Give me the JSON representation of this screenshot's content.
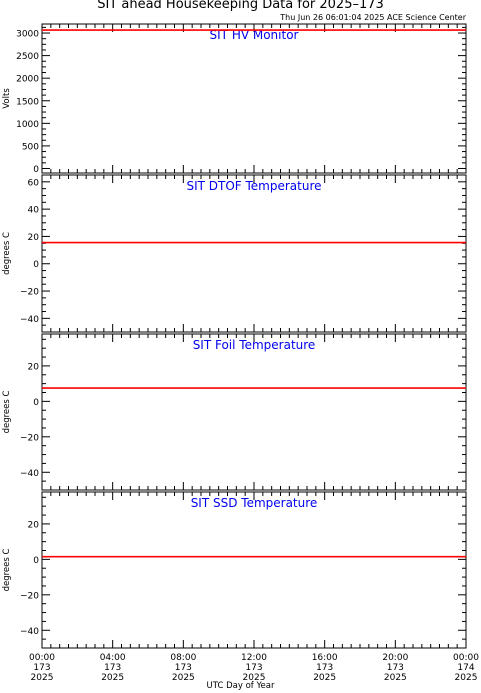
{
  "title": "SIT ahead Housekeeping Data for 2025–173",
  "stamp": "Thu Jun 26 06:01:04 2025 ACE Science Center",
  "x_axis_title": "UTC Day of Year",
  "colors": {
    "trace": "#ff0000",
    "panel_title": "#0000ee",
    "axes": "#000000"
  },
  "chart_data": [
    {
      "type": "line",
      "title": "SIT HV Monitor",
      "ylabel": "Volts",
      "ylim": [
        -100,
        3200
      ],
      "yticks": [
        0,
        500,
        1000,
        1500,
        2000,
        2500,
        3000
      ],
      "ytick_labels": [
        "0",
        "500",
        "1000",
        "1500",
        "2000",
        "2500",
        "3000"
      ],
      "x_hours": [
        0,
        24
      ],
      "series": [
        {
          "x": [
            0,
            24
          ],
          "values": [
            3065,
            3065
          ]
        }
      ]
    },
    {
      "type": "line",
      "title": "SIT DTOF Temperature",
      "ylabel": "degrees C",
      "ylim": [
        -50,
        65
      ],
      "yticks": [
        -40,
        -20,
        0,
        20,
        40,
        60
      ],
      "ytick_labels": [
        "−40",
        "−20",
        "0",
        "20",
        "40",
        "60"
      ],
      "x_hours": [
        0,
        24
      ],
      "series": [
        {
          "x": [
            0,
            24
          ],
          "values": [
            15.5,
            15.5
          ]
        }
      ]
    },
    {
      "type": "line",
      "title": "SIT Foil Temperature",
      "ylabel": "degrees C",
      "ylim": [
        -50,
        38
      ],
      "yticks": [
        -40,
        -20,
        0,
        20
      ],
      "ytick_labels": [
        "−40",
        "−20",
        "0",
        "20"
      ],
      "x_hours": [
        0,
        24
      ],
      "series": [
        {
          "x": [
            0,
            24
          ],
          "values": [
            7.5,
            7.5
          ]
        }
      ]
    },
    {
      "type": "line",
      "title": "SIT SSD Temperature",
      "ylabel": "degrees C",
      "ylim": [
        -50,
        38
      ],
      "yticks": [
        -40,
        -20,
        0,
        20
      ],
      "ytick_labels": [
        "−40",
        "−20",
        "0",
        "20"
      ],
      "x_hours": [
        0,
        24
      ],
      "series": [
        {
          "x": [
            0,
            24
          ],
          "values": [
            1.5,
            1.5
          ]
        }
      ]
    }
  ],
  "x_axis": {
    "range_hours": [
      0,
      24
    ],
    "ticks": [
      {
        "hour": 0,
        "time": "00:00",
        "doy": "173",
        "year": "2025"
      },
      {
        "hour": 4,
        "time": "04:00",
        "doy": "173",
        "year": "2025"
      },
      {
        "hour": 8,
        "time": "08:00",
        "doy": "173",
        "year": "2025"
      },
      {
        "hour": 12,
        "time": "12:00",
        "doy": "173",
        "year": "2025"
      },
      {
        "hour": 16,
        "time": "16:00",
        "doy": "173",
        "year": "2025"
      },
      {
        "hour": 20,
        "time": "20:00",
        "doy": "173",
        "year": "2025"
      },
      {
        "hour": 24,
        "time": "00:00",
        "doy": "174",
        "year": "2025"
      }
    ]
  }
}
